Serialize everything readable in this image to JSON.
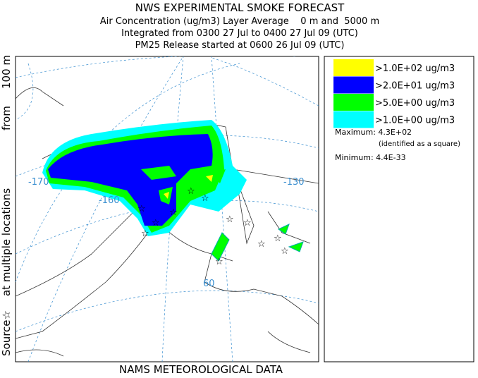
{
  "header": {
    "title": "NWS EXPERIMENTAL SMOKE FORECAST",
    "lines": [
      "Air Concentration (ug/m3) Layer Average    0 m and  5000 m",
      "Integrated from 0300 27 Jul to 0400 27 Jul 09 (UTC)",
      "PM25 Release started at 0600 26 Jul 09 (UTC)"
    ]
  },
  "side_label": [
    "Source☆",
    "at multiple locations",
    "from",
    "100 m"
  ],
  "footer": "NAMS METEOROLOGICAL DATA",
  "map": {
    "labels": [
      "-170",
      "-160",
      "-130",
      "60"
    ]
  },
  "legend": {
    "entries": [
      {
        "label": ">1.0E+02 ug/m3",
        "color": "#ffff00"
      },
      {
        "label": ">2.0E+01 ug/m3",
        "color": "#0000ff"
      },
      {
        "label": ">5.0E+00 ug/m3",
        "color": "#00ff00"
      },
      {
        "label": ">1.0E+00 ug/m3",
        "color": "#00ffff"
      }
    ],
    "maximum": "Maximum: 4.3E+02",
    "maximum_note": "(identified as a square)",
    "minimum": "Minimum: 4.4E-33"
  }
}
